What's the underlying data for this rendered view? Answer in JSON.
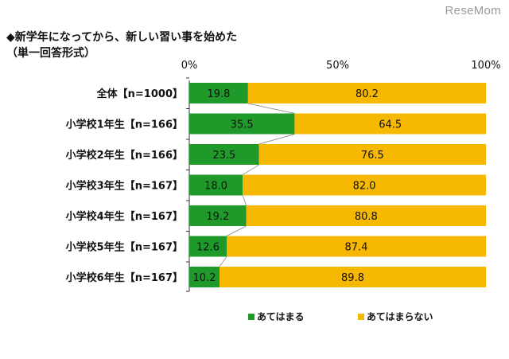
{
  "watermark": "ReseMom",
  "chart_data": {
    "type": "bar",
    "orientation": "horizontal",
    "stacked": true,
    "title": "◆新学年になってから、新しい習い事を始めた",
    "subtitle": "（単一回答形式）",
    "categories": [
      "全体【n=1000】",
      "小学校1年生【n=166】",
      "小学校2年生【n=166】",
      "小学校3年生【n=167】",
      "小学校4年生【n=167】",
      "小学校5年生【n=167】",
      "小学校6年生【n=167】"
    ],
    "series": [
      {
        "name": "あてはまる",
        "color": "#1f9a2a",
        "values": [
          19.8,
          35.5,
          23.5,
          18.0,
          19.2,
          12.6,
          10.2
        ]
      },
      {
        "name": "あてはまらない",
        "color": "#f6b800",
        "values": [
          80.2,
          64.5,
          76.5,
          82.0,
          80.8,
          87.4,
          89.8
        ]
      }
    ],
    "xlim": [
      0,
      100
    ],
    "ticks": [
      "0%",
      "50%",
      "100%"
    ],
    "legend_position": "bottom",
    "connector_lines": true
  }
}
